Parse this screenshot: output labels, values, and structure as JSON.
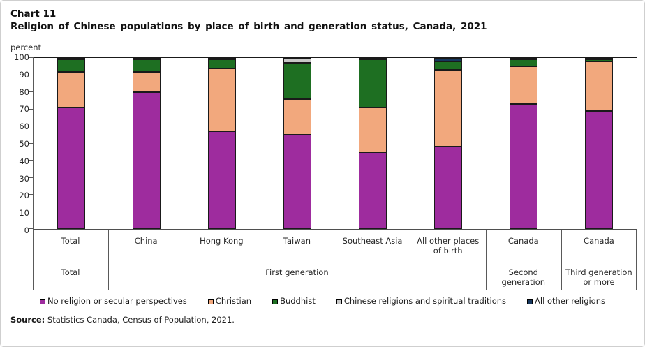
{
  "header": {
    "chart_label": "Chart 11",
    "title": "Religion of Chinese populations by place of birth and generation status, Canada, 2021"
  },
  "chart_data": {
    "type": "bar",
    "subtype": "stacked-vertical",
    "title": "Religion of Chinese populations by place of birth and generation status, Canada, 2021",
    "ylabel": "percent",
    "xlabel": "",
    "ylim": [
      0,
      100
    ],
    "yticks": [
      0,
      10,
      20,
      30,
      40,
      50,
      60,
      70,
      80,
      90,
      100
    ],
    "grid": false,
    "legend_position": "bottom",
    "categories": [
      "Total",
      "China",
      "Hong Kong",
      "Taiwan",
      "Southeast Asia",
      "All other places of birth",
      "Canada",
      "Canada"
    ],
    "groups": [
      {
        "label": "Total",
        "span": 1
      },
      {
        "label": "First generation",
        "span": 5
      },
      {
        "label": "Second generation",
        "span": 1
      },
      {
        "label": "Third generation or more",
        "span": 1
      }
    ],
    "series": [
      {
        "name": "No religion or secular perspectives",
        "color": "#9E2C9E",
        "values": [
          71,
          80,
          57,
          55,
          45,
          48,
          73,
          69
        ]
      },
      {
        "name": "Christian",
        "color": "#F2A87D",
        "values": [
          21,
          12,
          37,
          21,
          26,
          45,
          22,
          29
        ]
      },
      {
        "name": "Buddhist",
        "color": "#1E6F22",
        "values": [
          7,
          7,
          5,
          21,
          28,
          5,
          4,
          1
        ]
      },
      {
        "name": "Chinese religions and spiritual traditions",
        "color": "#C8C8C8",
        "values": [
          0.5,
          0,
          0,
          3,
          0,
          0,
          0,
          0
        ]
      },
      {
        "name": "All other religions",
        "color": "#17375E",
        "values": [
          0.5,
          1,
          1,
          0,
          1,
          2,
          1,
          1
        ]
      }
    ]
  },
  "source": {
    "label": "Source:",
    "text": " Statistics Canada, Census of Population, 2021."
  }
}
